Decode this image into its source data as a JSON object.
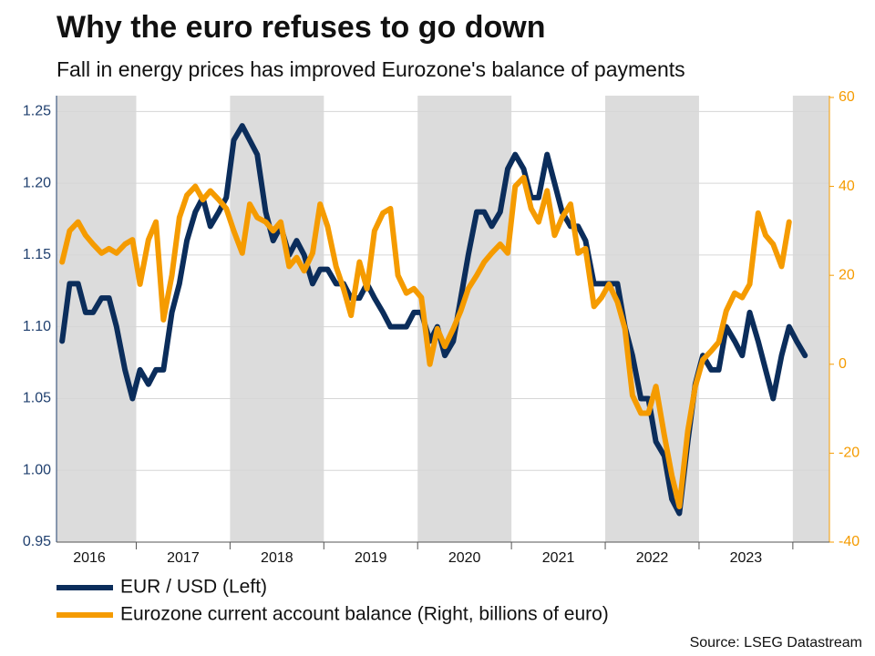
{
  "chart_data": {
    "type": "line",
    "title": "Why the euro refuses to go down",
    "subtitle": "Fall in energy prices has improved Eurozone's balance of payments",
    "source": "Source: LSEG Datastream",
    "x": [
      2016.21,
      2016.29,
      2016.38,
      2016.46,
      2016.54,
      2016.63,
      2016.71,
      2016.79,
      2016.88,
      2016.96,
      2017.04,
      2017.13,
      2017.21,
      2017.29,
      2017.38,
      2017.46,
      2017.54,
      2017.63,
      2017.71,
      2017.79,
      2017.88,
      2017.96,
      2018.04,
      2018.13,
      2018.21,
      2018.29,
      2018.38,
      2018.46,
      2018.54,
      2018.63,
      2018.71,
      2018.79,
      2018.88,
      2018.96,
      2019.04,
      2019.13,
      2019.21,
      2019.29,
      2019.38,
      2019.46,
      2019.54,
      2019.63,
      2019.71,
      2019.79,
      2019.88,
      2019.96,
      2020.04,
      2020.13,
      2020.21,
      2020.29,
      2020.38,
      2020.46,
      2020.54,
      2020.63,
      2020.71,
      2020.79,
      2020.88,
      2020.96,
      2021.04,
      2021.13,
      2021.21,
      2021.29,
      2021.38,
      2021.46,
      2021.54,
      2021.63,
      2021.71,
      2021.79,
      2021.88,
      2021.96,
      2022.04,
      2022.13,
      2022.21,
      2022.29,
      2022.38,
      2022.46,
      2022.54,
      2022.63,
      2022.71,
      2022.79,
      2022.88,
      2022.96,
      2023.04,
      2023.13,
      2023.21,
      2023.29,
      2023.38,
      2023.46,
      2023.54,
      2023.63,
      2023.71,
      2023.79,
      2023.88,
      2023.96,
      2024.04,
      2024.13
    ],
    "series": [
      {
        "name": "EUR / USD (Left)",
        "color": "#0b2d5b",
        "axis": "y",
        "values": [
          1.09,
          1.13,
          1.13,
          1.11,
          1.11,
          1.12,
          1.12,
          1.1,
          1.07,
          1.05,
          1.07,
          1.06,
          1.07,
          1.07,
          1.11,
          1.13,
          1.16,
          1.18,
          1.19,
          1.17,
          1.18,
          1.19,
          1.23,
          1.24,
          1.23,
          1.22,
          1.18,
          1.16,
          1.17,
          1.15,
          1.16,
          1.15,
          1.13,
          1.14,
          1.14,
          1.13,
          1.13,
          1.12,
          1.12,
          1.13,
          1.12,
          1.11,
          1.1,
          1.1,
          1.1,
          1.11,
          1.11,
          1.09,
          1.1,
          1.08,
          1.09,
          1.12,
          1.15,
          1.18,
          1.18,
          1.17,
          1.18,
          1.21,
          1.22,
          1.21,
          1.19,
          1.19,
          1.22,
          1.2,
          1.18,
          1.17,
          1.17,
          1.16,
          1.13,
          1.13,
          1.13,
          1.13,
          1.1,
          1.08,
          1.05,
          1.05,
          1.02,
          1.01,
          0.98,
          0.97,
          1.02,
          1.06,
          1.08,
          1.07,
          1.07,
          1.1,
          1.09,
          1.08,
          1.11,
          1.09,
          1.07,
          1.05,
          1.08,
          1.1,
          1.09,
          1.08
        ]
      },
      {
        "name": "Eurozone current account balance (Right, billions of euro)",
        "color": "#f59b00",
        "axis": "y2",
        "values": [
          23,
          30,
          32,
          29,
          27,
          25,
          26,
          25,
          27,
          28,
          18,
          28,
          32,
          10,
          20,
          33,
          38,
          40,
          37,
          39,
          37,
          35,
          30,
          25,
          36,
          33,
          32,
          30,
          32,
          22,
          24,
          21,
          25,
          36,
          31,
          22,
          17,
          11,
          23,
          17,
          30,
          34,
          35,
          20,
          16,
          17,
          15,
          0,
          8,
          4,
          8,
          12,
          17,
          20,
          23,
          25,
          27,
          25,
          40,
          42,
          35,
          32,
          39,
          29,
          33,
          36,
          25,
          26,
          13,
          15,
          18,
          14,
          8,
          -7,
          -11,
          -11,
          -5,
          -16,
          -25,
          -32,
          -15,
          -5,
          1,
          3,
          5,
          12,
          16,
          15,
          18,
          34,
          29,
          27,
          22,
          32,
          null,
          null
        ]
      }
    ],
    "xlim": [
      2016.15,
      2024.39
    ],
    "xticks": [
      {
        "value": 2016.5,
        "label": "2016"
      },
      {
        "value": 2017.5,
        "label": "2017"
      },
      {
        "value": 2018.5,
        "label": "2018"
      },
      {
        "value": 2019.5,
        "label": "2019"
      },
      {
        "value": 2020.5,
        "label": "2020"
      },
      {
        "value": 2021.5,
        "label": "2021"
      },
      {
        "value": 2022.5,
        "label": "2022"
      },
      {
        "value": 2023.5,
        "label": "2023"
      }
    ],
    "ylim": [
      0.95,
      1.261
    ],
    "yticks": [
      0.95,
      {
        "value": 1,
        "label": "1.00"
      },
      1.05,
      {
        "value": 1.1,
        "label": "1.10"
      },
      1.15,
      {
        "value": 1.2,
        "label": "1.20"
      },
      1.25
    ],
    "y2lim": [
      -40,
      60.4
    ],
    "y2ticks": [
      -40,
      -20,
      0,
      20,
      40,
      60
    ],
    "grid": true,
    "legend": "bottom-left",
    "shade_alternate_years": true
  }
}
